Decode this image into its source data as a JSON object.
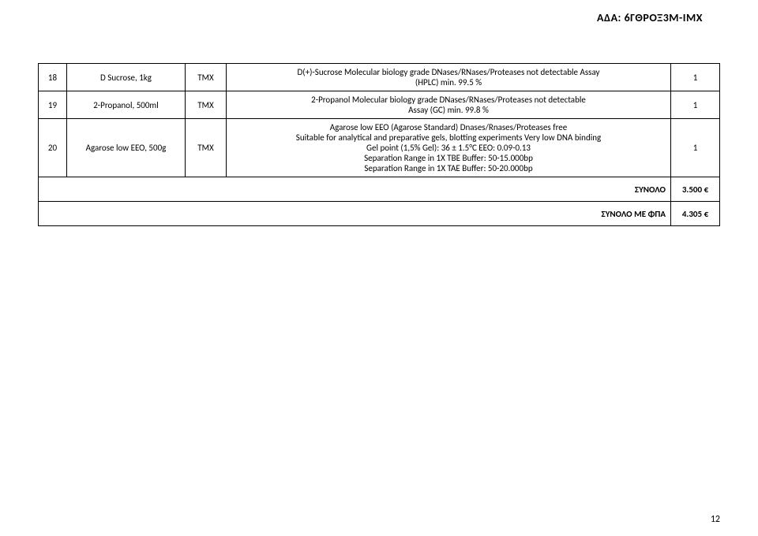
{
  "header_code": "ΑΔΑ: 6ΓΘΡΟΞ3Μ-ΙΜΧ",
  "rows": [
    {
      "num": "18",
      "name": "D Sucrose, 1kg",
      "unit": "ΤΜΧ",
      "desc_lines": [
        "D(+)-Sucrose Molecular biology grade DNases/RNases/Proteases not detectable   Assay",
        "(HPLC) min. 99.5 %"
      ],
      "qty": "1"
    },
    {
      "num": "19",
      "name": "2-Propanol, 500ml",
      "unit": "ΤΜΧ",
      "desc_lines": [
        "2-Propanol Molecular biology grade DNases/RNases/Proteases not detectable",
        "Assay (GC) min. 99.8 %"
      ],
      "qty": "1"
    },
    {
      "num": "20",
      "name": "Agarose low EEO, 500g",
      "unit": "ΤΜΧ",
      "desc_lines": [
        "Agarose low EEO (Agarose Standard) Dnases/Rnases/Proteases free",
        "Suitable for analytical and preparative gels, blotting experiments Very low DNA binding",
        "Gel point (1,5% Gel): 36 ± 1.5°C EEO: 0.09-0.13",
        "Separation Range in 1X TBE Buffer: 50-15.000bp",
        "Separation Range in 1X TAE Buffer: 50-20.000bp"
      ],
      "qty": "1"
    }
  ],
  "totals": {
    "label1": "ΣΥΝΟΛΟ",
    "value1": "3.500 €",
    "label2": "ΣΥΝΟΛΟ ΜΕ ΦΠΑ",
    "value2": "4.305 €"
  },
  "page_number": "12",
  "colors": {
    "text": "#000000",
    "border": "#000000",
    "background": "#ffffff"
  }
}
